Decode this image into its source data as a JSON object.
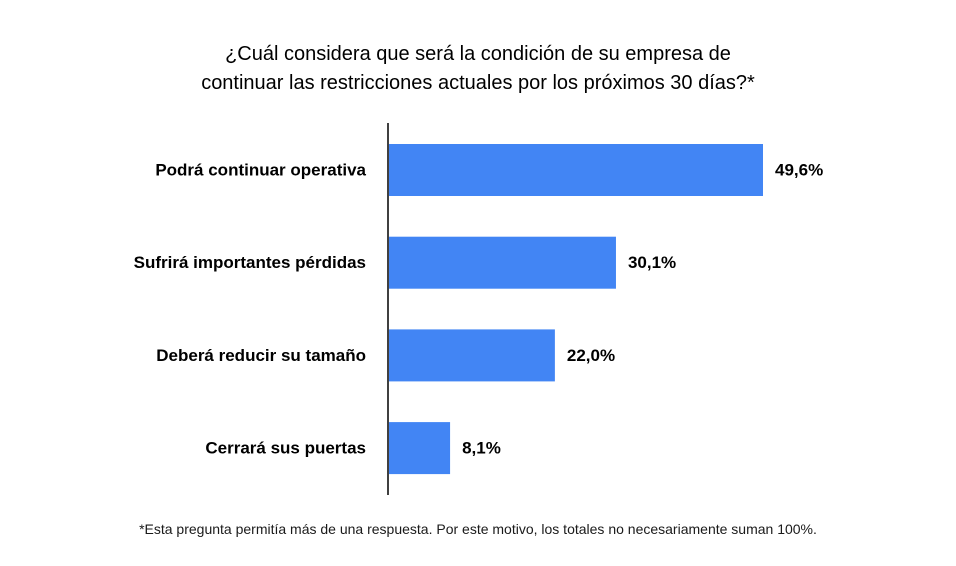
{
  "chart_data": {
    "type": "bar",
    "orientation": "horizontal",
    "title_lines": [
      "¿Cuál considera que será la condición de su empresa de",
      "continuar las restricciones actuales por los próximos 30 días?*"
    ],
    "categories": [
      "Podrá continuar operativa",
      "Sufrirá importantes pérdidas",
      "Deberá reducir su tamaño",
      "Cerrará sus puertas"
    ],
    "values": [
      49.6,
      30.1,
      22.0,
      8.1
    ],
    "value_labels": [
      "49,6%",
      "30,1%",
      "22,0%",
      "8,1%"
    ],
    "unit": "%",
    "bar_color": "#4285f4",
    "xlim": [
      0,
      50
    ],
    "grid": false,
    "legend": "none"
  },
  "footnote": "*Esta pregunta permitía más de una respuesta. Por este motivo, los totales no necesariamente suman 100%."
}
